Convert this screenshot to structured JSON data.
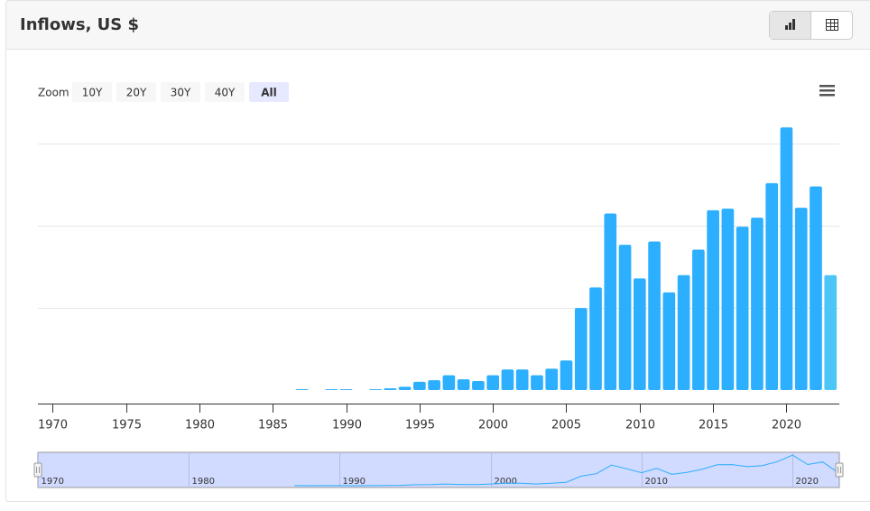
{
  "header": {
    "title": "Inflows, US $"
  },
  "chart_data": {
    "type": "bar",
    "zoom": {
      "label": "Zoom",
      "buttons": [
        "10Y",
        "20Y",
        "30Y",
        "40Y",
        "All"
      ],
      "selected": 4
    },
    "x": [
      1987,
      1988,
      1989,
      1990,
      1991,
      1992,
      1993,
      1994,
      1995,
      1996,
      1997,
      1998,
      1999,
      2000,
      2001,
      2002,
      2003,
      2004,
      2005,
      2006,
      2007,
      2008,
      2009,
      2010,
      2011,
      2012,
      2013,
      2014,
      2015,
      2016,
      2017,
      2018,
      2019,
      2020,
      2021,
      2022,
      2023
    ],
    "values": [
      0.01,
      0,
      0.01,
      0.01,
      0,
      0.01,
      0.02,
      0.04,
      0.1,
      0.12,
      0.18,
      0.13,
      0.11,
      0.18,
      0.25,
      0.25,
      0.18,
      0.26,
      0.36,
      1.0,
      1.25,
      2.15,
      1.77,
      1.36,
      1.81,
      1.19,
      1.4,
      1.71,
      2.19,
      2.21,
      1.99,
      2.1,
      2.52,
      3.2,
      2.22,
      2.48,
      1.4
    ],
    "color": "#2caffe",
    "last_color": "#4cc6f7",
    "xlim": [
      1969,
      2023.6
    ],
    "xticks": [
      1970,
      1975,
      1980,
      1985,
      1990,
      1995,
      2000,
      2005,
      2010,
      2015,
      2020
    ],
    "ylim": [
      0,
      3.3
    ],
    "ygrid": [
      1,
      2,
      3
    ],
    "navigator": {
      "xlim": [
        1970,
        2023.1
      ],
      "xticks": [
        1970,
        1980,
        1990,
        2000,
        2010,
        2020
      ]
    }
  }
}
